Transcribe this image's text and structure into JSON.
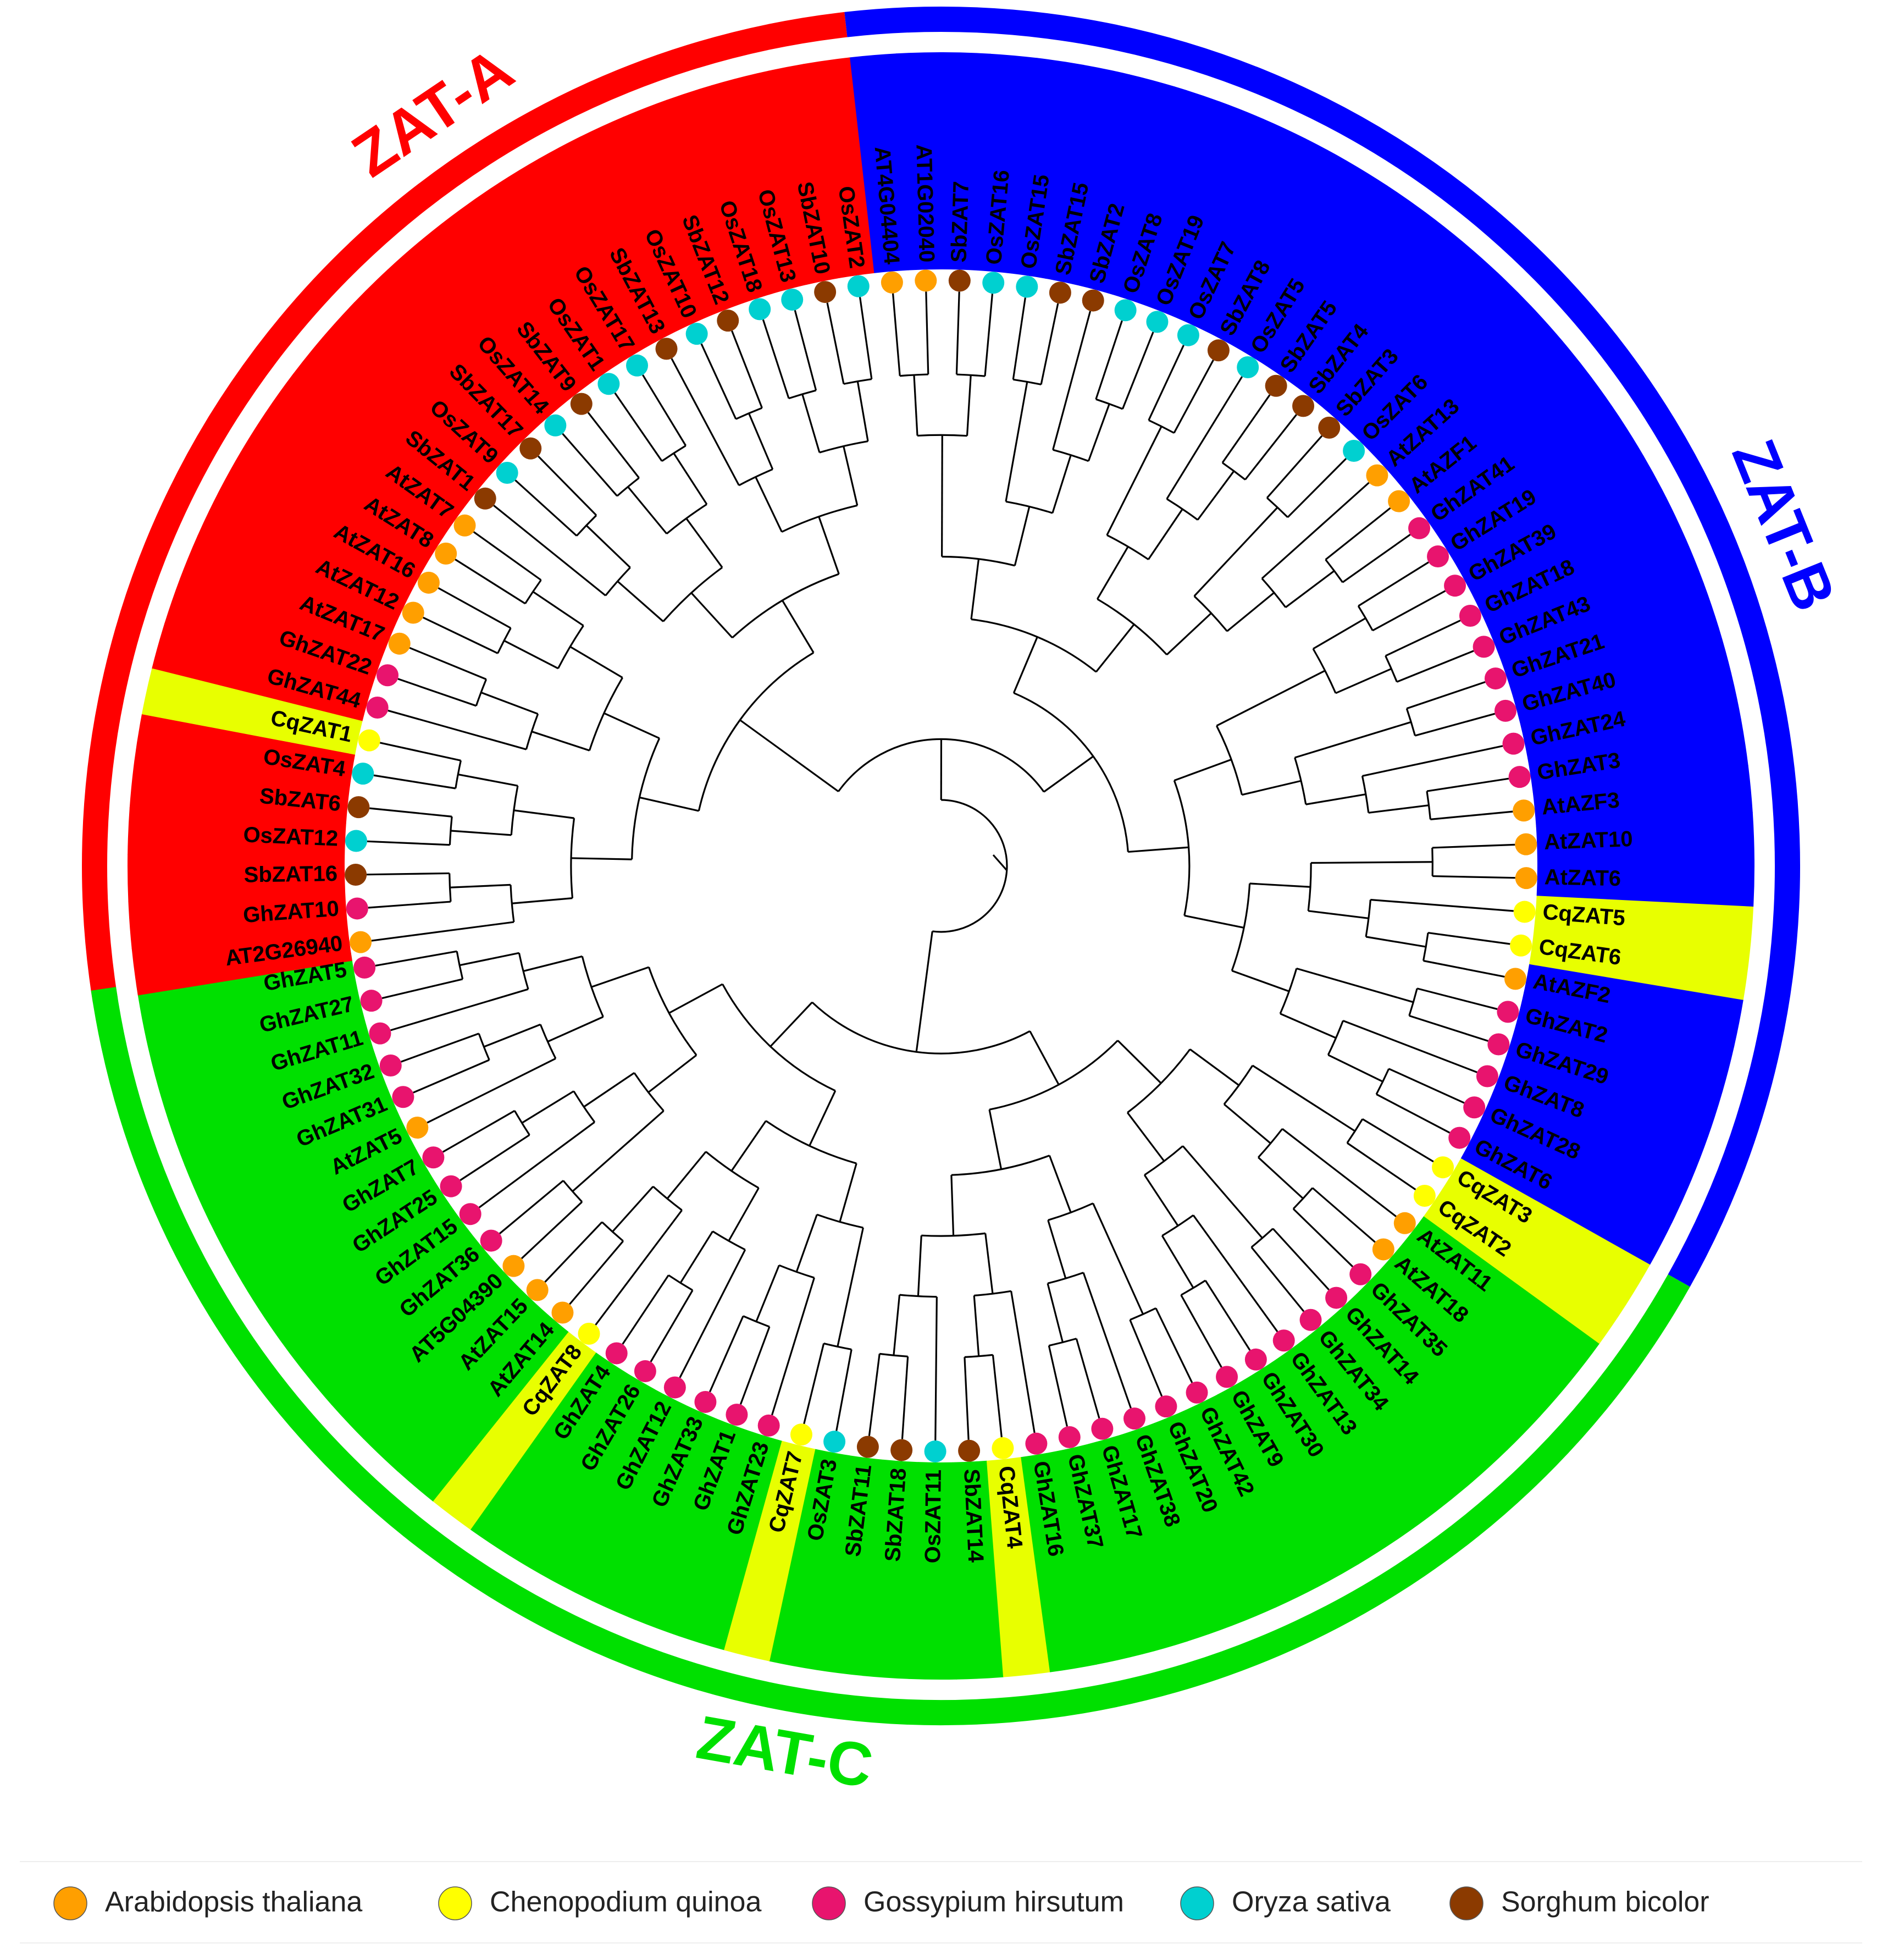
{
  "tree": {
    "leaves": [
      {
        "name": "GhZAT5",
        "sp": "gh",
        "g": "C"
      },
      {
        "name": "GhZAT27",
        "sp": "gh",
        "g": "C"
      },
      {
        "name": "GhZAT11",
        "sp": "gh",
        "g": "C"
      },
      {
        "name": "GhZAT32",
        "sp": "gh",
        "g": "C"
      },
      {
        "name": "GhZAT31",
        "sp": "gh",
        "g": "C"
      },
      {
        "name": "AtZAT5",
        "sp": "at",
        "g": "C"
      },
      {
        "name": "GhZAT7",
        "sp": "gh",
        "g": "C"
      },
      {
        "name": "GhZAT25",
        "sp": "gh",
        "g": "C"
      },
      {
        "name": "GhZAT15",
        "sp": "gh",
        "g": "C"
      },
      {
        "name": "GhZAT36",
        "sp": "gh",
        "g": "C"
      },
      {
        "name": "AT5G04390",
        "sp": "at",
        "g": "C"
      },
      {
        "name": "AtZAT15",
        "sp": "at",
        "g": "C"
      },
      {
        "name": "AtZAT14",
        "sp": "at",
        "g": "C"
      },
      {
        "name": "CqZAT8",
        "sp": "cq",
        "g": "C"
      },
      {
        "name": "GhZAT4",
        "sp": "gh",
        "g": "C"
      },
      {
        "name": "GhZAT26",
        "sp": "gh",
        "g": "C"
      },
      {
        "name": "GhZAT12",
        "sp": "gh",
        "g": "C"
      },
      {
        "name": "GhZAT33",
        "sp": "gh",
        "g": "C"
      },
      {
        "name": "GhZAT1",
        "sp": "gh",
        "g": "C"
      },
      {
        "name": "GhZAT23",
        "sp": "gh",
        "g": "C"
      },
      {
        "name": "CqZAT7",
        "sp": "cq",
        "g": "C"
      },
      {
        "name": "OsZAT3",
        "sp": "os",
        "g": "C"
      },
      {
        "name": "SbZAT11",
        "sp": "sb",
        "g": "C"
      },
      {
        "name": "SbZAT18",
        "sp": "sb",
        "g": "C"
      },
      {
        "name": "OsZAT11",
        "sp": "os",
        "g": "C"
      },
      {
        "name": "SbZAT14",
        "sp": "sb",
        "g": "C"
      },
      {
        "name": "CqZAT4",
        "sp": "cq",
        "g": "C"
      },
      {
        "name": "GhZAT16",
        "sp": "gh",
        "g": "C"
      },
      {
        "name": "GhZAT37",
        "sp": "gh",
        "g": "C"
      },
      {
        "name": "GhZAT17",
        "sp": "gh",
        "g": "C"
      },
      {
        "name": "GhZAT38",
        "sp": "gh",
        "g": "C"
      },
      {
        "name": "GhZAT20",
        "sp": "gh",
        "g": "C"
      },
      {
        "name": "GhZAT42",
        "sp": "gh",
        "g": "C"
      },
      {
        "name": "GhZAT9",
        "sp": "gh",
        "g": "C"
      },
      {
        "name": "GhZAT30",
        "sp": "gh",
        "g": "C"
      },
      {
        "name": "GhZAT13",
        "sp": "gh",
        "g": "C"
      },
      {
        "name": "GhZAT34",
        "sp": "gh",
        "g": "C"
      },
      {
        "name": "GhZAT14",
        "sp": "gh",
        "g": "C"
      },
      {
        "name": "GhZAT35",
        "sp": "gh",
        "g": "C"
      },
      {
        "name": "AtZAT18",
        "sp": "at",
        "g": "C"
      },
      {
        "name": "AtZAT11",
        "sp": "at",
        "g": "C"
      },
      {
        "name": "CqZAT2",
        "sp": "cq",
        "g": "C"
      },
      {
        "name": "CqZAT3",
        "sp": "cq",
        "g": "C"
      },
      {
        "name": "GhZAT6",
        "sp": "gh",
        "g": "B"
      },
      {
        "name": "GhZAT28",
        "sp": "gh",
        "g": "B"
      },
      {
        "name": "GhZAT8",
        "sp": "gh",
        "g": "B"
      },
      {
        "name": "GhZAT29",
        "sp": "gh",
        "g": "B"
      },
      {
        "name": "GhZAT2",
        "sp": "gh",
        "g": "B"
      },
      {
        "name": "AtAZF2",
        "sp": "at",
        "g": "B"
      },
      {
        "name": "CqZAT6",
        "sp": "cq",
        "g": "B"
      },
      {
        "name": "CqZAT5",
        "sp": "cq",
        "g": "B"
      },
      {
        "name": "AtZAT6",
        "sp": "at",
        "g": "B"
      },
      {
        "name": "AtZAT10",
        "sp": "at",
        "g": "B"
      },
      {
        "name": "AtAZF3",
        "sp": "at",
        "g": "B"
      },
      {
        "name": "GhZAT3",
        "sp": "gh",
        "g": "B"
      },
      {
        "name": "GhZAT24",
        "sp": "gh",
        "g": "B"
      },
      {
        "name": "GhZAT40",
        "sp": "gh",
        "g": "B"
      },
      {
        "name": "GhZAT21",
        "sp": "gh",
        "g": "B"
      },
      {
        "name": "GhZAT43",
        "sp": "gh",
        "g": "B"
      },
      {
        "name": "GhZAT18",
        "sp": "gh",
        "g": "B"
      },
      {
        "name": "GhZAT39",
        "sp": "gh",
        "g": "B"
      },
      {
        "name": "GhZAT19",
        "sp": "gh",
        "g": "B"
      },
      {
        "name": "GhZAT41",
        "sp": "gh",
        "g": "B"
      },
      {
        "name": "AtAZF1",
        "sp": "at",
        "g": "B"
      },
      {
        "name": "AtZAT13",
        "sp": "at",
        "g": "B"
      },
      {
        "name": "OsZAT6",
        "sp": "os",
        "g": "B"
      },
      {
        "name": "SbZAT3",
        "sp": "sb",
        "g": "B"
      },
      {
        "name": "SbZAT4",
        "sp": "sb",
        "g": "B"
      },
      {
        "name": "SbZAT5",
        "sp": "sb",
        "g": "B"
      },
      {
        "name": "OsZAT5",
        "sp": "os",
        "g": "B"
      },
      {
        "name": "SbZAT8",
        "sp": "sb",
        "g": "B"
      },
      {
        "name": "OsZAT7",
        "sp": "os",
        "g": "B"
      },
      {
        "name": "OsZAT19",
        "sp": "os",
        "g": "B"
      },
      {
        "name": "OsZAT8",
        "sp": "os",
        "g": "B"
      },
      {
        "name": "SbZAT2",
        "sp": "sb",
        "g": "B"
      },
      {
        "name": "SbZAT15",
        "sp": "sb",
        "g": "B"
      },
      {
        "name": "OsZAT15",
        "sp": "os",
        "g": "B"
      },
      {
        "name": "OsZAT16",
        "sp": "os",
        "g": "B"
      },
      {
        "name": "SbZAT7",
        "sp": "sb",
        "g": "B"
      },
      {
        "name": "AT1G02040",
        "sp": "at",
        "g": "B"
      },
      {
        "name": "AT4G04404",
        "sp": "at",
        "g": "B"
      },
      {
        "name": "OsZAT2",
        "sp": "os",
        "g": "A"
      },
      {
        "name": "SbZAT10",
        "sp": "sb",
        "g": "A"
      },
      {
        "name": "OsZAT13",
        "sp": "os",
        "g": "A"
      },
      {
        "name": "OsZAT18",
        "sp": "os",
        "g": "A"
      },
      {
        "name": "SbZAT12",
        "sp": "sb",
        "g": "A"
      },
      {
        "name": "OsZAT10",
        "sp": "os",
        "g": "A"
      },
      {
        "name": "SbZAT13",
        "sp": "sb",
        "g": "A"
      },
      {
        "name": "OsZAT17",
        "sp": "os",
        "g": "A"
      },
      {
        "name": "OsZAT1",
        "sp": "os",
        "g": "A"
      },
      {
        "name": "SbZAT9",
        "sp": "sb",
        "g": "A"
      },
      {
        "name": "OsZAT14",
        "sp": "os",
        "g": "A"
      },
      {
        "name": "SbZAT17",
        "sp": "sb",
        "g": "A"
      },
      {
        "name": "OsZAT9",
        "sp": "os",
        "g": "A"
      },
      {
        "name": "SbZAT1",
        "sp": "sb",
        "g": "A"
      },
      {
        "name": "AtZAT7",
        "sp": "at",
        "g": "A"
      },
      {
        "name": "AtZAT8",
        "sp": "at",
        "g": "A"
      },
      {
        "name": "AtZAT16",
        "sp": "at",
        "g": "A"
      },
      {
        "name": "AtZAT12",
        "sp": "at",
        "g": "A"
      },
      {
        "name": "AtZAT17",
        "sp": "at",
        "g": "A"
      },
      {
        "name": "GhZAT22",
        "sp": "gh",
        "g": "A"
      },
      {
        "name": "GhZAT44",
        "sp": "gh",
        "g": "A"
      },
      {
        "name": "CqZAT1",
        "sp": "cq",
        "g": "A"
      },
      {
        "name": "OsZAT4",
        "sp": "os",
        "g": "A"
      },
      {
        "name": "SbZAT6",
        "sp": "sb",
        "g": "A"
      },
      {
        "name": "OsZAT12",
        "sp": "os",
        "g": "A"
      },
      {
        "name": "SbZAT16",
        "sp": "sb",
        "g": "A"
      },
      {
        "name": "GhZAT10",
        "sp": "gh",
        "g": "A"
      },
      {
        "name": "AT2G26940",
        "sp": "at",
        "g": "A"
      }
    ]
  },
  "clades": {
    "A": {
      "label": "ZAT-A",
      "color": "#ff0000"
    },
    "B": {
      "label": "ZAT-B",
      "color": "#0000ff"
    },
    "C": {
      "label": "ZAT-C",
      "color": "#00e000"
    }
  },
  "species": {
    "at": {
      "name": "Arabidopsis thaliana",
      "color": "#ff9f00"
    },
    "cq": {
      "name": "Chenopodium quinoa",
      "color": "#ffff00"
    },
    "gh": {
      "name": "Gossypium hirsutum",
      "color": "#e8146e"
    },
    "os": {
      "name": "Oryza sativa",
      "color": "#00d0d0"
    },
    "sb": {
      "name": "Sorghum bicolor",
      "color": "#8b3a00"
    }
  },
  "colors": {
    "quinoa_highlight": "#e8ff00"
  },
  "legend": [
    {
      "name": "Arabidopsis thaliana",
      "color": "#ff9f00"
    },
    {
      "name": "Chenopodium quinoa",
      "color": "#ffff00"
    },
    {
      "name": "Gossypium hirsutum",
      "color": "#e8146e"
    },
    {
      "name": "Oryza sativa",
      "color": "#00d0d0"
    },
    {
      "name": "Sorghum bicolor",
      "color": "#8b3a00"
    }
  ]
}
